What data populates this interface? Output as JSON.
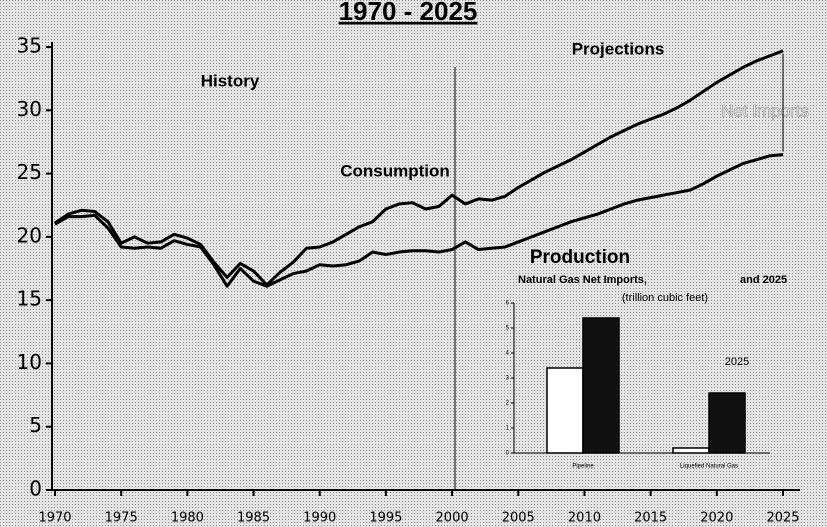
{
  "chart_data": [
    {
      "type": "line",
      "title": "1970 - 2025",
      "annotations": {
        "history": "History",
        "projections": "Projections",
        "net_imports": "Net Imports",
        "consumption": "Consumption",
        "production": "Production"
      },
      "x": [
        1970,
        1971,
        1972,
        1973,
        1974,
        1975,
        1976,
        1977,
        1978,
        1979,
        1980,
        1981,
        1982,
        1983,
        1984,
        1985,
        1986,
        1987,
        1988,
        1989,
        1990,
        1991,
        1992,
        1993,
        1994,
        1995,
        1996,
        1997,
        1998,
        1999,
        2000,
        2001,
        2002,
        2003,
        2004,
        2005,
        2006,
        2007,
        2008,
        2009,
        2010,
        2011,
        2012,
        2013,
        2014,
        2015,
        2016,
        2017,
        2018,
        2019,
        2020,
        2021,
        2022,
        2023,
        2024,
        2025
      ],
      "series": [
        {
          "name": "Consumption",
          "color": "#000000",
          "values": [
            21.1,
            21.8,
            22.1,
            22.0,
            21.2,
            19.5,
            20.0,
            19.5,
            19.6,
            20.2,
            19.9,
            19.4,
            18.0,
            16.8,
            17.9,
            17.3,
            16.2,
            17.2,
            18.0,
            19.1,
            19.2,
            19.6,
            20.2,
            20.8,
            21.2,
            22.2,
            22.6,
            22.7,
            22.2,
            22.4,
            23.3,
            22.6,
            23.0,
            22.9,
            23.2,
            23.9,
            24.5,
            25.1,
            25.6,
            26.1,
            26.7,
            27.3,
            27.9,
            28.4,
            28.9,
            29.3,
            29.7,
            30.2,
            30.8,
            31.5,
            32.2,
            32.8,
            33.4,
            33.9,
            34.3,
            34.7
          ]
        },
        {
          "name": "Production",
          "color": "#000000",
          "values": [
            21.0,
            21.6,
            21.6,
            21.7,
            20.7,
            19.2,
            19.1,
            19.2,
            19.1,
            19.7,
            19.4,
            19.2,
            17.8,
            16.1,
            17.5,
            16.5,
            16.1,
            16.6,
            17.1,
            17.3,
            17.8,
            17.7,
            17.8,
            18.1,
            18.8,
            18.6,
            18.8,
            18.9,
            18.9,
            18.8,
            19.0,
            19.6,
            19.0,
            19.1,
            19.2,
            19.6,
            20.0,
            20.4,
            20.8,
            21.2,
            21.5,
            21.8,
            22.2,
            22.6,
            22.9,
            23.1,
            23.3,
            23.5,
            23.7,
            24.2,
            24.8,
            25.3,
            25.8,
            26.1,
            26.4,
            26.5
          ]
        }
      ],
      "xlim": [
        1970,
        2025
      ],
      "xticks": [
        1970,
        1975,
        1980,
        1985,
        1990,
        1995,
        2000,
        2005,
        2010,
        2015,
        2020,
        2025
      ],
      "ylim": [
        0,
        35
      ],
      "yticks": [
        0,
        5,
        10,
        15,
        20,
        25,
        30,
        35
      ]
    },
    {
      "type": "bar",
      "title": "Natural Gas Net Imports,",
      "title_end": "and 2025",
      "subtitle": "(trillion cubic feet)",
      "categories": [
        "Pipeline",
        "Liquefied Natural Gas"
      ],
      "series": [
        {
          "color": "#ffffff",
          "values": [
            3.4,
            0.2
          ]
        },
        {
          "name": "2025",
          "color": "#111111",
          "values": [
            5.4,
            2.4
          ]
        }
      ],
      "ylim": [
        0,
        6
      ],
      "yticks": [
        0,
        1,
        2,
        3,
        4,
        5,
        6
      ]
    }
  ]
}
